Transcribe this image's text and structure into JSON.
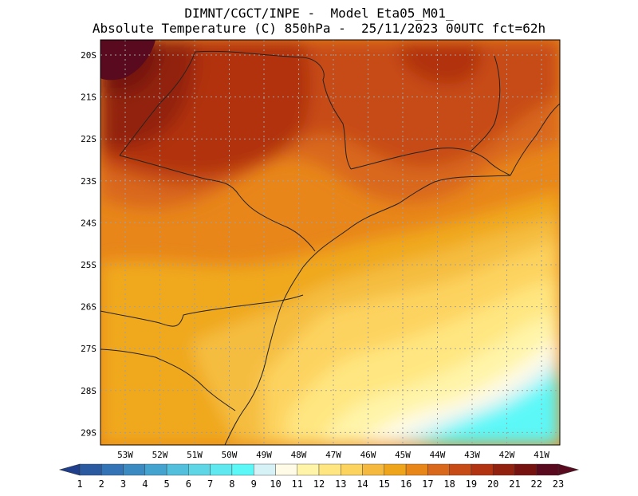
{
  "header": {
    "line1": "DIMNT/CGCT/INPE -  Model Eta05_M01_",
    "line2": "Absolute Temperature (C) 850hPa -  25/11/2023 00UTC fct=62h"
  },
  "map": {
    "lat_labels": [
      "20S",
      "21S",
      "22S",
      "23S",
      "24S",
      "25S",
      "26S",
      "27S",
      "28S",
      "29S"
    ],
    "lon_labels": [
      "53W",
      "52W",
      "51W",
      "50W",
      "49W",
      "48W",
      "47W",
      "46W",
      "45W",
      "44W",
      "43W",
      "42W",
      "41W"
    ]
  },
  "colorbar": {
    "labels": [
      "1",
      "2",
      "3",
      "4",
      "5",
      "6",
      "7",
      "8",
      "9",
      "10",
      "11",
      "12",
      "13",
      "14",
      "15",
      "16",
      "17",
      "18",
      "19",
      "20",
      "21",
      "22",
      "23"
    ],
    "colors": [
      "#1f3f8c",
      "#2c5aa0",
      "#3473b5",
      "#3b8ac2",
      "#45a3cf",
      "#52bfdc",
      "#5fd6e6",
      "#5fe8ef",
      "#5cf8f8",
      "#d6f2f7",
      "#fffbe6",
      "#fff4a8",
      "#ffe680",
      "#fdd35f",
      "#f5b93f",
      "#efa51b",
      "#e8861a",
      "#d9671c",
      "#c74b16",
      "#b13311",
      "#92220f",
      "#76120f",
      "#5a0a1e"
    ]
  },
  "field": {
    "background": "#e8861a"
  }
}
